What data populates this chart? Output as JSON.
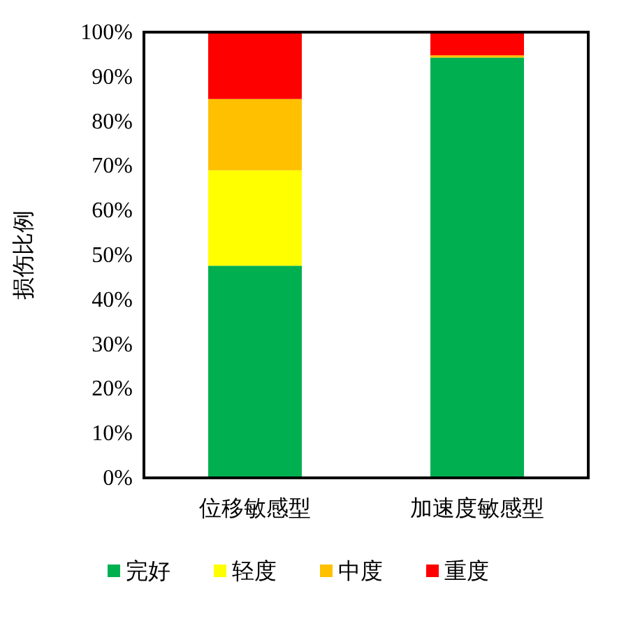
{
  "chart_data": {
    "type": "bar",
    "stacked": true,
    "ylabel": "损伤比例",
    "categories": [
      "位移敏感型",
      "加速度敏感型"
    ],
    "series": [
      {
        "name": "完好",
        "color": "#00b050",
        "values": [
          47.6,
          94.3
        ]
      },
      {
        "name": "轻度",
        "color": "#ffff00",
        "values": [
          21.4,
          0
        ]
      },
      {
        "name": "中度",
        "color": "#ffc000",
        "values": [
          16.0,
          0.5
        ]
      },
      {
        "name": "重度",
        "color": "#ff0000",
        "values": [
          15.0,
          5.2
        ]
      }
    ],
    "ylim": [
      0,
      100
    ],
    "yticks": [
      {
        "value": 0,
        "label": "0%"
      },
      {
        "value": 10,
        "label": "10%"
      },
      {
        "value": 20,
        "label": "20%"
      },
      {
        "value": 30,
        "label": "30%"
      },
      {
        "value": 40,
        "label": "40%"
      },
      {
        "value": 50,
        "label": "50%"
      },
      {
        "value": 60,
        "label": "60%"
      },
      {
        "value": 70,
        "label": "70%"
      },
      {
        "value": 80,
        "label": "80%"
      },
      {
        "value": 90,
        "label": "90%"
      },
      {
        "value": 100,
        "label": "100%"
      }
    ],
    "grid": false,
    "legend": "bottom"
  }
}
